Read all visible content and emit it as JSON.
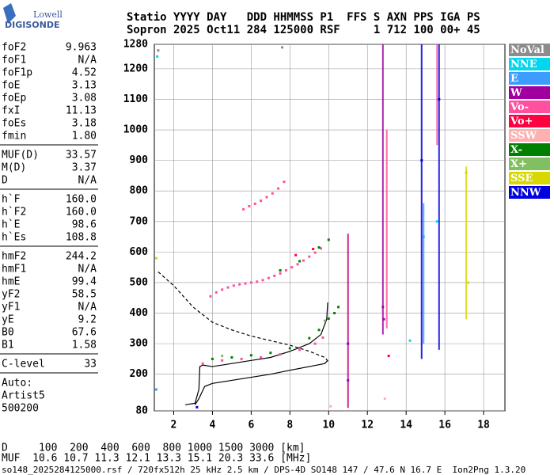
{
  "logo": {
    "top": "Lowell",
    "bottom": "DIGISONDE"
  },
  "header": {
    "lines": [
      "Statio YYYY DAY   DDD HHMMSS P1  FFS S AXN PPS IGA PS",
      "Sopron 2025 Oct11 284 125000 RSF     1 712 100 00+ 45"
    ]
  },
  "parameter_groups": [
    [
      {
        "name": "foF2",
        "value": "9.963"
      },
      {
        "name": "foF1",
        "value": "N/A"
      },
      {
        "name": "foF1p",
        "value": "4.52"
      },
      {
        "name": "foE",
        "value": "3.13"
      },
      {
        "name": "foEp",
        "value": "3.08"
      },
      {
        "name": "fxI",
        "value": "11.13"
      },
      {
        "name": "foEs",
        "value": "3.18"
      },
      {
        "name": "fmin",
        "value": "1.80"
      }
    ],
    [
      {
        "name": "MUF(D)",
        "value": "33.57"
      },
      {
        "name": "M(D)",
        "value": "3.37"
      },
      {
        "name": "D",
        "value": "N/A"
      }
    ],
    [
      {
        "name": "h`F",
        "value": "160.0"
      },
      {
        "name": "h`F2",
        "value": "160.0"
      },
      {
        "name": "h`E",
        "value": "98.6"
      },
      {
        "name": "h`Es",
        "value": "108.8"
      }
    ],
    [
      {
        "name": "hmF2",
        "value": "244.2"
      },
      {
        "name": "hmF1",
        "value": "N/A"
      },
      {
        "name": "hmE",
        "value": "99.4"
      },
      {
        "name": "yF2",
        "value": "58.5"
      },
      {
        "name": "yF1",
        "value": "N/A"
      },
      {
        "name": "yE",
        "value": "9.2"
      },
      {
        "name": "B0",
        "value": "67.6"
      },
      {
        "name": "B1",
        "value": "1.58"
      }
    ],
    [
      {
        "name": "C-level",
        "value": "33"
      }
    ]
  ],
  "auto": [
    "Auto:",
    "Artist5",
    "500200"
  ],
  "bottom": {
    "lines": [
      "D     100  200  400  600  800 1000 1500 3000 [km]",
      "MUF  10.6 10.7 11.3 12.1 13.3 15.1 20.3 33.6 [MHz]"
    ]
  },
  "footer": "so148_2025284125000.rsf / 720fx512h 25 kHz 2.5 km / DPS-4D SO148 147 / 47.6 N 16.7 E  Ion2Png 1.3.20",
  "chart_data": {
    "type": "scatter",
    "xlim": [
      1,
      19.1
    ],
    "xticks": [
      2,
      4,
      6,
      8,
      10,
      12,
      14,
      16,
      18
    ],
    "ylim": [
      80,
      1280
    ],
    "yticks": [
      80,
      200,
      300,
      400,
      500,
      600,
      700,
      800,
      900,
      1000,
      1100,
      1200,
      1280
    ],
    "grid": true,
    "series": [
      {
        "name": "NoVal",
        "color": "#8c8c8c",
        "x": [
          1.2,
          7.6
        ],
        "values": [
          1260,
          1270
        ]
      },
      {
        "name": "NNE",
        "color": "#00d8f0",
        "x": [
          1.15,
          14.2,
          15.6
        ],
        "values": [
          1240,
          310,
          700
        ]
      },
      {
        "name": "E",
        "color": "#3c9cff",
        "x": [
          1.1,
          14.9
        ],
        "values": [
          150,
          650
        ]
      },
      {
        "name": "W",
        "color": "#a000a0",
        "x": [
          12.8,
          12.85,
          11,
          11
        ],
        "values": [
          420,
          380,
          300,
          180
        ]
      },
      {
        "name": "Vo-",
        "color": "#ff50a0",
        "x": [
          3.9,
          4.2,
          4.5,
          4.8,
          5.1,
          5.4,
          5.7,
          6.0,
          6.3,
          6.6,
          6.9,
          7.2,
          7.5,
          7.8,
          8.1,
          8.4,
          8.7,
          9.0,
          9.3,
          9.6,
          5.6,
          5.9,
          6.2,
          6.5,
          6.8,
          7.1,
          7.4,
          7.7,
          3.5,
          4.5,
          5.5,
          6.5,
          7.5,
          8.5,
          9.3,
          9.7
        ],
        "values": [
          455,
          468,
          477,
          484,
          490,
          494,
          497,
          500,
          503,
          508,
          515,
          522,
          530,
          540,
          550,
          560,
          572,
          585,
          598,
          612,
          740,
          750,
          758,
          768,
          780,
          792,
          808,
          830,
          235,
          245,
          250,
          255,
          265,
          280,
          300,
          320
        ]
      },
      {
        "name": "Vo+",
        "color": "#ff0040",
        "x": [
          8.3,
          9.2,
          13.1
        ],
        "values": [
          590,
          610,
          260
        ]
      },
      {
        "name": "SSW",
        "color": "#ffb0b0",
        "x": [
          12.9,
          10.1
        ],
        "values": [
          120,
          95
        ]
      },
      {
        "name": "X-",
        "color": "#008000",
        "x": [
          4,
          5,
          6,
          7,
          8,
          9,
          9.5,
          10,
          10.3,
          10.5,
          7.5,
          8.5,
          9.5,
          10
        ],
        "values": [
          250,
          255,
          262,
          270,
          285,
          318,
          345,
          382,
          400,
          420,
          540,
          570,
          615,
          640
        ]
      },
      {
        "name": "X+",
        "color": "#80c060",
        "x": [
          4.5,
          9.8
        ],
        "values": [
          260,
          375
        ]
      },
      {
        "name": "SSE",
        "color": "#d8d800",
        "x": [
          17.2,
          17.1,
          1.1
        ],
        "values": [
          500,
          860,
          580
        ]
      },
      {
        "name": "NNW",
        "color": "#0000e0",
        "x": [
          14.8,
          15.7,
          3.2
        ],
        "values": [
          900,
          1100,
          92
        ]
      }
    ],
    "streaks": [
      {
        "color": "#a000a0",
        "x": 12.8,
        "y": [
          330,
          1280
        ]
      },
      {
        "color": "#ff50a0",
        "x": 13.0,
        "y": [
          350,
          1000
        ]
      },
      {
        "color": "#0000e0",
        "x": 14.8,
        "y": [
          250,
          1280
        ]
      },
      {
        "color": "#0000e0",
        "x": 15.7,
        "y": [
          280,
          1280
        ]
      },
      {
        "color": "#3c9cff",
        "x": 14.9,
        "y": [
          300,
          760
        ]
      },
      {
        "color": "#ff50a0",
        "x": 15.6,
        "y": [
          950,
          1280
        ]
      },
      {
        "color": "#d8d800",
        "x": 17.1,
        "y": [
          380,
          880
        ]
      },
      {
        "color": "#c00080",
        "x": 11.0,
        "y": [
          90,
          660
        ]
      }
    ],
    "curves": [
      {
        "color": "#000000",
        "dashed": false,
        "x": [
          2.6,
          3.1,
          3.3,
          3.35,
          3.5,
          4,
          5,
          6,
          7,
          8,
          9,
          9.6,
          9.9,
          9.95
        ],
        "values": [
          100,
          105,
          150,
          225,
          230,
          225,
          235,
          245,
          255,
          275,
          300,
          330,
          380,
          435
        ]
      },
      {
        "color": "#000000",
        "dashed": false,
        "x": [
          3.1,
          3.3,
          3.6,
          4,
          5,
          6,
          7,
          8,
          9,
          9.8,
          9.95
        ],
        "values": [
          100,
          120,
          160,
          170,
          180,
          190,
          200,
          213,
          225,
          235,
          245
        ]
      },
      {
        "color": "#000000",
        "dashed": true,
        "x": [
          1.2,
          2,
          3,
          4,
          5,
          6,
          7,
          8,
          9,
          9.8,
          10
        ],
        "values": [
          535,
          490,
          420,
          370,
          345,
          325,
          310,
          295,
          275,
          255,
          240
        ]
      }
    ]
  }
}
